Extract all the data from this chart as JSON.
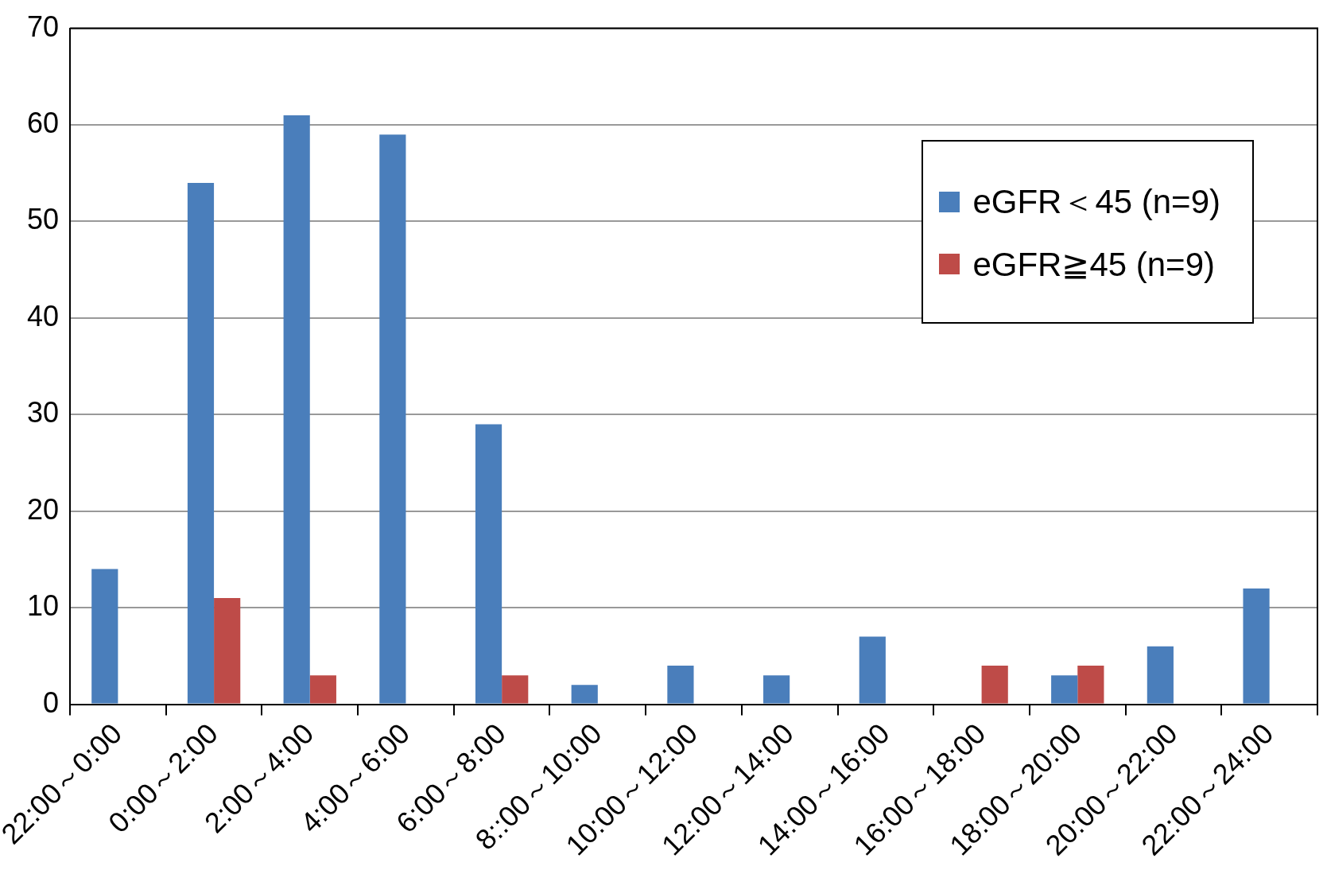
{
  "chart_data": {
    "type": "bar",
    "categories": [
      "22:00～0:00",
      "0:00～2:00",
      "2:00～4:00",
      "4:00～6:00",
      "6:00～8:00",
      "8::00～10:00",
      "10:00～12:00",
      "12:00～14:00",
      "14:00～16:00",
      "16:00～18:00",
      "18:00～20:00",
      "20:00～22:00",
      "22:00～24:00"
    ],
    "series": [
      {
        "name": "eGFR＜45 (n=9)",
        "color": "#4a7ebb",
        "values": [
          14,
          54,
          61,
          59,
          29,
          2,
          4,
          3,
          7,
          0,
          3,
          6,
          12
        ]
      },
      {
        "name": "eGFR≧45 (n=9)",
        "color": "#be4b48",
        "values": [
          0,
          11,
          3,
          0,
          3,
          0,
          0,
          0,
          0,
          4,
          4,
          0,
          0
        ]
      }
    ],
    "ylim": [
      0,
      70
    ],
    "yticks": [
      0,
      10,
      20,
      30,
      40,
      50,
      60,
      70
    ],
    "grid": "y",
    "legend": "top right"
  }
}
